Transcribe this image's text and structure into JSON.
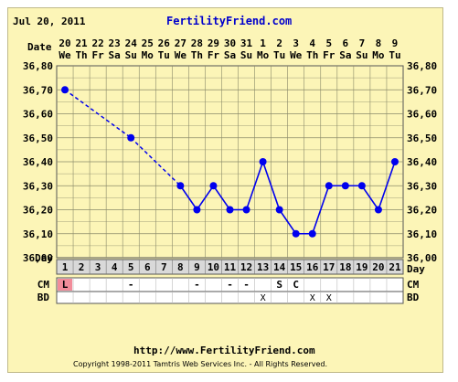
{
  "header": {
    "date": "Jul 20, 2011",
    "site": "FertilityFriend.com"
  },
  "footer": {
    "url": "http://www.FertilityFriend.com",
    "copyright": "Copyright 1998-2011 Tamtris Web Services Inc. - All Rights Reserved."
  },
  "colors": {
    "background": "#fcf5b7",
    "grid": "#8a8a6a",
    "series": "#0000ee",
    "row_band": "#d9d9d9",
    "menstruation": "#f28c9a"
  },
  "chart_data": {
    "type": "line",
    "row_labels": {
      "date": "Date",
      "day": "Day",
      "cm": "CM",
      "bd": "BD"
    },
    "dates": [
      "20",
      "21",
      "22",
      "23",
      "24",
      "25",
      "26",
      "27",
      "28",
      "29",
      "30",
      "31",
      "1",
      "2",
      "3",
      "4",
      "5",
      "6",
      "7",
      "8",
      "9"
    ],
    "weekdays": [
      "We",
      "Th",
      "Fr",
      "Sa",
      "Su",
      "Mo",
      "Tu",
      "We",
      "Th",
      "Fr",
      "Sa",
      "Su",
      "Mo",
      "Tu",
      "We",
      "Th",
      "Fr",
      "Sa",
      "Su",
      "Mo",
      "Tu"
    ],
    "days": [
      "1",
      "2",
      "3",
      "4",
      "5",
      "6",
      "7",
      "8",
      "9",
      "10",
      "11",
      "12",
      "13",
      "14",
      "15",
      "16",
      "17",
      "18",
      "19",
      "20",
      "21"
    ],
    "y_ticks": [
      "36,80",
      "36,70",
      "36,60",
      "36,50",
      "36,40",
      "36,30",
      "36,20",
      "36,10",
      "36,00"
    ],
    "ylim": [
      36.0,
      36.8
    ],
    "temperatures": [
      36.7,
      null,
      null,
      null,
      36.5,
      null,
      null,
      36.3,
      36.2,
      36.3,
      36.2,
      36.2,
      36.4,
      36.2,
      36.1,
      36.1,
      36.3,
      36.3,
      36.3,
      36.2,
      36.4
    ],
    "interpolated_segments": [
      [
        1,
        5
      ],
      [
        5,
        8
      ]
    ],
    "cm": [
      "L",
      "",
      "",
      "",
      "-",
      "",
      "",
      "",
      "-",
      "",
      "-",
      "-",
      "",
      "S",
      "C",
      "",
      "",
      "",
      "",
      "",
      ""
    ],
    "bd": [
      "",
      "",
      "",
      "",
      "",
      "",
      "",
      "",
      "",
      "",
      "",
      "",
      "X",
      "",
      "",
      "X",
      "X",
      "",
      "",
      "",
      ""
    ],
    "grid": true
  }
}
